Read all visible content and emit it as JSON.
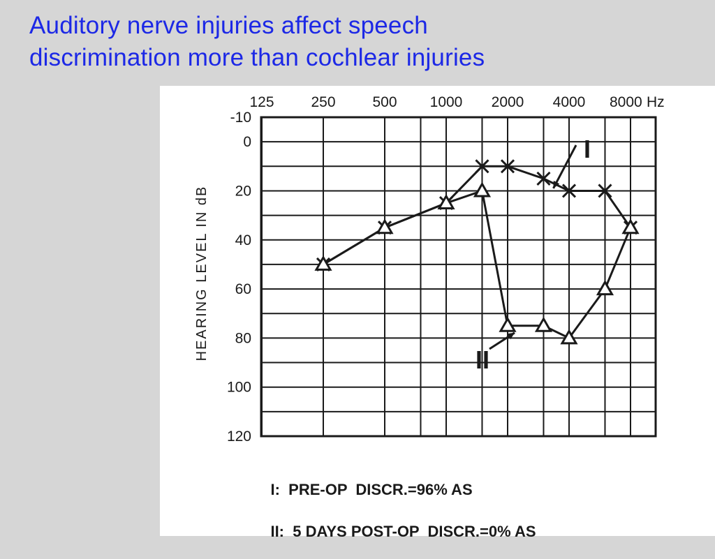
{
  "slide": {
    "title_line1": "Auditory nerve injuries affect speech",
    "title_line2": "discrimination more than cochlear injuries",
    "title_color": "#1c28e6",
    "background": "#d6d6d6"
  },
  "chart_data": {
    "type": "line",
    "title": "",
    "ylabel": "HEARING LEVEL IN dB",
    "xlabel": "",
    "x_unit": "Hz",
    "x_ticks": [
      "125",
      "250",
      "500",
      "1000",
      "2000",
      "4000",
      "8000"
    ],
    "y_ticks": [
      "-10",
      "0",
      "20",
      "40",
      "60",
      "80",
      "100",
      "120"
    ],
    "ylim": [
      -10,
      120
    ],
    "y_inverted": true,
    "grid": true,
    "series": [
      {
        "name": "I",
        "marker": "x",
        "x": [
          250,
          500,
          1000,
          1500,
          2000,
          3000,
          4000,
          6000,
          8000
        ],
        "values": [
          50,
          35,
          25,
          10,
          10,
          15,
          20,
          20,
          35
        ]
      },
      {
        "name": "II",
        "marker": "triangle",
        "x": [
          250,
          500,
          1000,
          1500,
          2000,
          3000,
          4000,
          6000,
          8000
        ],
        "values": [
          50,
          35,
          25,
          20,
          75,
          75,
          80,
          60,
          35
        ]
      }
    ],
    "annotations": [
      {
        "label": "I",
        "target_series": "I",
        "target_x": 3000
      },
      {
        "label": "II",
        "target_series": "II",
        "target_x": 2000
      }
    ],
    "legend": [
      {
        "label": "I:",
        "text": "PRE-OP  DISCR.=96% AS"
      },
      {
        "label": "II:",
        "text": "5 DAYS POST-OP  DISCR.=0% AS"
      }
    ]
  }
}
